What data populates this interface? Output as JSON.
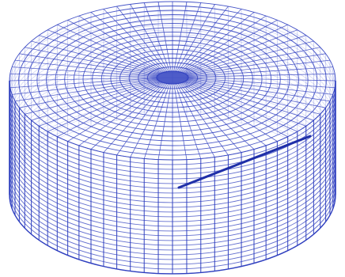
{
  "diagram": {
    "type": "3d-wireframe-mesh",
    "shape": "cylinder",
    "colors": {
      "background": "#ffffff",
      "mesh": "#2f3fbf",
      "mesh_light": "#5a66d6",
      "highlight_line": "#1f2fa8"
    },
    "mesh": {
      "radial_divisions": 72,
      "top_rings": 16,
      "wall_bands": 24
    }
  }
}
